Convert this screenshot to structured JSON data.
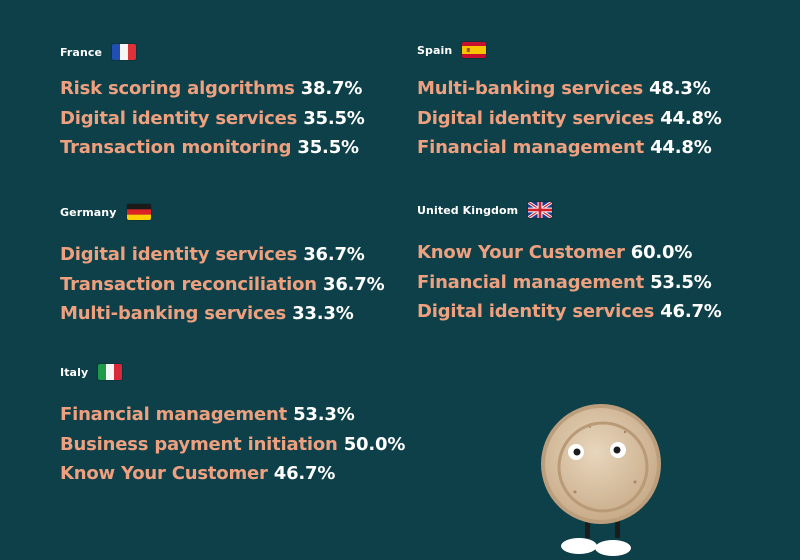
{
  "colors": {
    "background": "#0e4049",
    "label": "#eea07f",
    "value": "#ffffff"
  },
  "countries": [
    {
      "name": "France",
      "flag_icon": "france-flag-icon",
      "items": [
        {
          "label": "Risk scoring algorithms",
          "value": "38.7%"
        },
        {
          "label": "Digital identity services",
          "value": "35.5%"
        },
        {
          "label": "Transaction monitoring",
          "value": "35.5%"
        }
      ]
    },
    {
      "name": "Spain",
      "flag_icon": "spain-flag-icon",
      "items": [
        {
          "label": "Multi-banking services",
          "value": "48.3%"
        },
        {
          "label": "Digital identity services",
          "value": "44.8%"
        },
        {
          "label": "Financial management",
          "value": "44.8%"
        }
      ]
    },
    {
      "name": "Germany",
      "flag_icon": "germany-flag-icon",
      "items": [
        {
          "label": "Digital identity services",
          "value": "36.7%"
        },
        {
          "label": "Transaction reconciliation",
          "value": "36.7%"
        },
        {
          "label": "Multi-banking services",
          "value": "33.3%"
        }
      ]
    },
    {
      "name": "United Kingdom",
      "flag_icon": "uk-flag-icon",
      "items": [
        {
          "label": "Know Your Customer",
          "value": "60.0%"
        },
        {
          "label": "Financial management",
          "value": "53.5%"
        },
        {
          "label": "Digital identity services",
          "value": "46.7%"
        }
      ]
    },
    {
      "name": "Italy",
      "flag_icon": "italy-flag-icon",
      "items": [
        {
          "label": "Financial management",
          "value": "53.3%"
        },
        {
          "label": "Business payment initiation",
          "value": "50.0%"
        },
        {
          "label": "Know Your Customer",
          "value": "46.7%"
        }
      ]
    }
  ],
  "illustration": "coin-character-icon"
}
